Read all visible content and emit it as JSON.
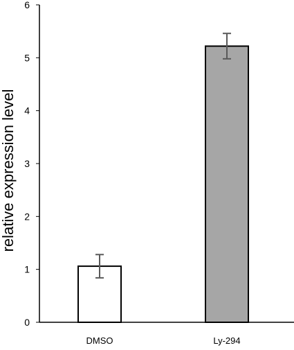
{
  "chart_data": {
    "type": "bar",
    "title": "",
    "xlabel": "",
    "ylabel": "relative expression level",
    "ylim": [
      0,
      6
    ],
    "yticks": [
      0,
      1,
      2,
      3,
      4,
      5,
      6
    ],
    "grid": false,
    "legend": "none",
    "categories": [
      "DMSO",
      "Ly-294"
    ],
    "series": [
      {
        "values": [
          1.06,
          5.22
        ],
        "error": [
          0.22,
          0.24
        ],
        "colors": [
          "#ffffff",
          "#a6a6a6"
        ]
      }
    ]
  },
  "colors": {
    "bar_edge": "#000000",
    "axis": "#000000",
    "error_bar": "#595959"
  }
}
